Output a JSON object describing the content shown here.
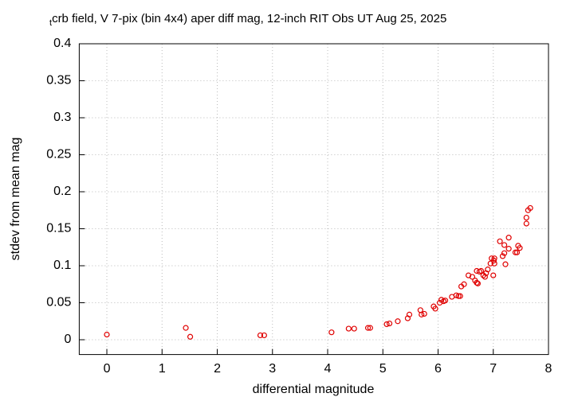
{
  "chart_data": {
    "type": "scatter",
    "title": [
      "t",
      "crb field, V 7-pix (bin 4x4) aper diff mag,  12-inch RIT Obs UT Aug 25, 2025"
    ],
    "xlabel": "differential magnitude",
    "ylabel": "stdev from mean mag",
    "xlim": [
      -0.5,
      8
    ],
    "ylim": [
      -0.02,
      0.4
    ],
    "xticks": [
      0,
      1,
      2,
      3,
      4,
      5,
      6,
      7,
      8
    ],
    "yticks": [
      0,
      0.05,
      0.1,
      0.15,
      0.2,
      0.25,
      0.3,
      0.35,
      0.4
    ],
    "grid": true,
    "color": "#e00000",
    "x": [
      0,
      1.43,
      1.51,
      2.78,
      2.85,
      4.07,
      4.38,
      4.48,
      4.73,
      4.77,
      5.07,
      5.12,
      5.27,
      5.45,
      5.48,
      5.68,
      5.7,
      5.75,
      5.92,
      5.95,
      6.03,
      6.06,
      6.1,
      6.13,
      6.25,
      6.33,
      6.37,
      6.4,
      6.42,
      6.47,
      6.55,
      6.62,
      6.67,
      6.7,
      6.7,
      6.72,
      6.75,
      6.78,
      6.82,
      6.85,
      6.87,
      6.9,
      6.95,
      6.97,
      7.01,
      7.02,
      7.02,
      7.0,
      7.12,
      7.17,
      7.2,
      7.2,
      7.22,
      7.28,
      7.28,
      7.4,
      7.43,
      7.45,
      7.48,
      7.6,
      7.6,
      7.63,
      7.67
    ],
    "values": [
      0.007,
      0.016,
      0.004,
      0.006,
      0.006,
      0.01,
      0.015,
      0.015,
      0.016,
      0.016,
      0.021,
      0.022,
      0.025,
      0.029,
      0.034,
      0.04,
      0.034,
      0.035,
      0.045,
      0.042,
      0.05,
      0.054,
      0.052,
      0.053,
      0.058,
      0.06,
      0.059,
      0.059,
      0.072,
      0.075,
      0.087,
      0.085,
      0.08,
      0.077,
      0.093,
      0.076,
      0.092,
      0.093,
      0.087,
      0.085,
      0.09,
      0.095,
      0.103,
      0.11,
      0.107,
      0.11,
      0.103,
      0.087,
      0.133,
      0.113,
      0.117,
      0.128,
      0.102,
      0.138,
      0.123,
      0.118,
      0.118,
      0.127,
      0.124,
      0.165,
      0.157,
      0.175,
      0.178
    ]
  }
}
